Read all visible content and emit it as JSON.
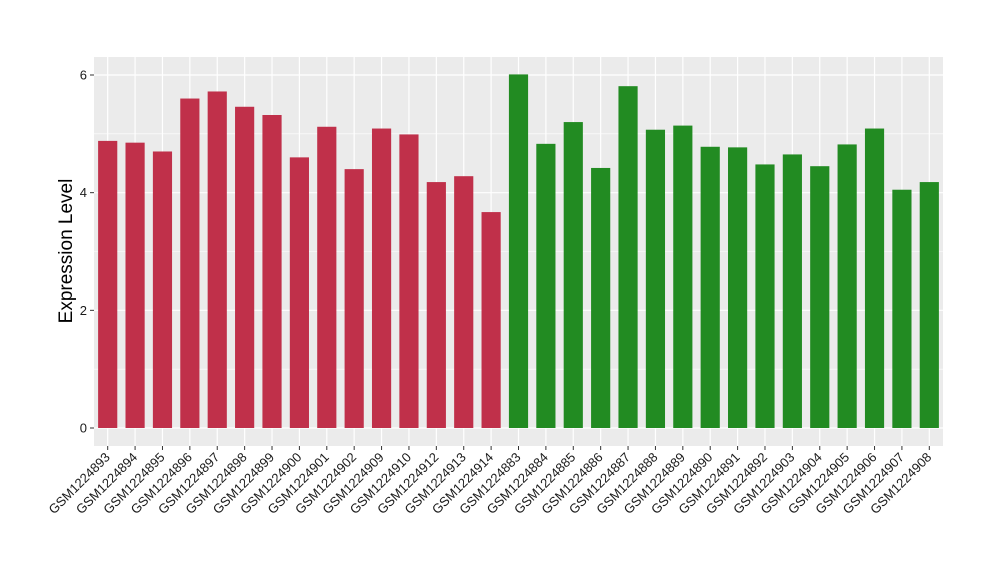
{
  "chart_data": {
    "type": "bar",
    "title": "",
    "xlabel": "",
    "ylabel": "Expression Level",
    "ylim": [
      0,
      6.3
    ],
    "yticks": [
      0,
      2,
      4,
      6
    ],
    "grid": true,
    "legend": "none",
    "categories": [
      "GSM1224893",
      "GSM1224894",
      "GSM1224895",
      "GSM1224896",
      "GSM1224897",
      "GSM1224898",
      "GSM1224899",
      "GSM1224900",
      "GSM1224901",
      "GSM1224902",
      "GSM1224909",
      "GSM1224910",
      "GSM1224912",
      "GSM1224913",
      "GSM1224914",
      "GSM1224883",
      "GSM1224884",
      "GSM1224885",
      "GSM1224886",
      "GSM1224887",
      "GSM1224888",
      "GSM1224889",
      "GSM1224890",
      "GSM1224891",
      "GSM1224892",
      "GSM1224903",
      "GSM1224904",
      "GSM1224905",
      "GSM1224906",
      "GSM1224907",
      "GSM1224908"
    ],
    "values": [
      4.88,
      4.85,
      4.7,
      5.6,
      5.72,
      5.46,
      5.32,
      4.6,
      5.12,
      4.4,
      5.09,
      4.99,
      4.18,
      4.28,
      3.67,
      6.01,
      4.83,
      5.2,
      4.42,
      5.81,
      5.07,
      5.14,
      4.78,
      4.77,
      4.48,
      4.65,
      4.45,
      4.82,
      5.09,
      4.05,
      4.18
    ],
    "group_sizes": [
      15,
      16
    ],
    "colors": [
      "#c0304a",
      "#228b22"
    ]
  },
  "style": {
    "panel_background": "#ebebeb",
    "grid_color": "#ffffff",
    "tick_color": "#333333"
  }
}
